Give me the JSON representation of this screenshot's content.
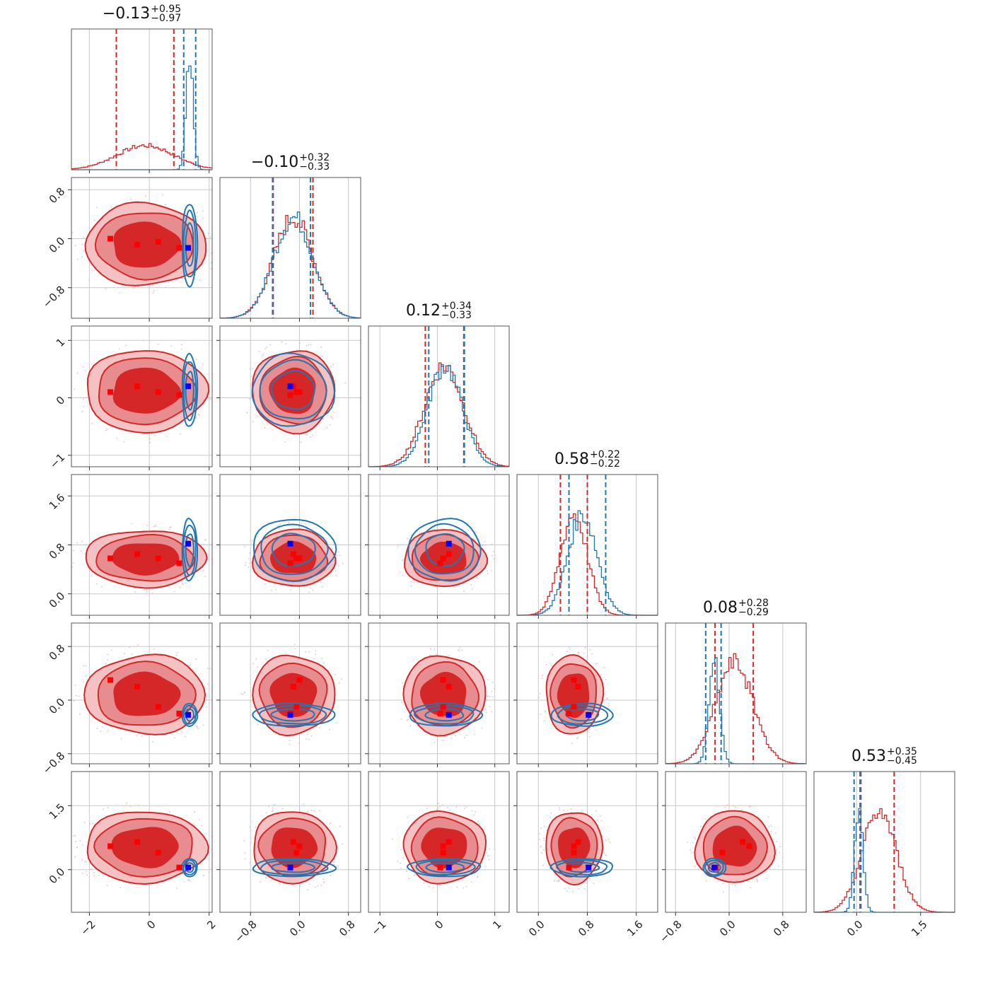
{
  "chart_data": {
    "type": "corner",
    "title": "",
    "parameters": 6,
    "panel_titles": [
      {
        "value": "−0.13",
        "plus": "+0.95",
        "minus": "−0.97"
      },
      {
        "value": "−0.10",
        "plus": "+0.32",
        "minus": "−0.33"
      },
      {
        "value": "0.12",
        "plus": "+0.34",
        "minus": "−0.33"
      },
      {
        "value": "0.58",
        "plus": "+0.22",
        "minus": "−0.22"
      },
      {
        "value": "0.08",
        "plus": "+0.28",
        "minus": "−0.29"
      },
      {
        "value": "0.53",
        "plus": "+0.35",
        "minus": "−0.45"
      }
    ],
    "ranges": [
      [
        -2.6,
        2.1
      ],
      [
        -1.3,
        1.0
      ],
      [
        -1.2,
        1.25
      ],
      [
        -0.35,
        1.95
      ],
      [
        -0.95,
        1.15
      ],
      [
        -1.0,
        2.3
      ]
    ],
    "x_ticks": [
      {
        "values": [
          -2,
          0,
          2
        ],
        "labels": [
          "−2",
          "0",
          "2"
        ]
      },
      {
        "values": [
          -0.8,
          0.0,
          0.8
        ],
        "labels": [
          "−0.8",
          "0.0",
          "0.8"
        ]
      },
      {
        "values": [
          -1,
          0,
          1
        ],
        "labels": [
          "−1",
          "0",
          "1"
        ]
      },
      {
        "values": [
          0.0,
          0.8,
          1.6
        ],
        "labels": [
          "0.0",
          "0.8",
          "1.6"
        ]
      },
      {
        "values": [
          -0.8,
          0.0,
          0.8
        ],
        "labels": [
          "−0.8",
          "0.0",
          "0.8"
        ]
      },
      {
        "values": [
          0.0,
          1.5
        ],
        "labels": [
          "0.0",
          "1.5"
        ]
      }
    ],
    "y_ticks": [
      null,
      {
        "values": [
          0.8,
          0.0,
          -0.8
        ],
        "labels": [
          "0.8",
          "0.0",
          "−0.8"
        ]
      },
      {
        "values": [
          1,
          0,
          -1
        ],
        "labels": [
          "1",
          "0",
          "−1"
        ]
      },
      {
        "values": [
          1.6,
          0.8,
          0.0
        ],
        "labels": [
          "1.6",
          "0.8",
          "0.0"
        ]
      },
      {
        "values": [
          0.8,
          0.0,
          -0.8
        ],
        "labels": [
          "0.8",
          "0.0",
          "−0.8"
        ]
      },
      {
        "values": [
          1.5,
          0.0
        ],
        "labels": [
          "1.5",
          "0.0"
        ]
      }
    ],
    "series": [
      {
        "color": "#d62728",
        "marker_color": "#ff0000",
        "means": [
          -0.13,
          -0.1,
          0.12,
          0.58,
          0.08,
          0.53
        ],
        "sigmas": [
          0.96,
          0.32,
          0.34,
          0.22,
          0.28,
          0.4
        ],
        "quantiles": [
          [
            -1.1,
            0.82
          ],
          [
            -0.43,
            0.22
          ],
          [
            -0.21,
            0.46
          ],
          [
            0.36,
            0.8
          ],
          [
            -0.21,
            0.36
          ],
          [
            0.08,
            0.88
          ]
        ],
        "markers": [
          [
            -1.3,
            0.0,
            0.1,
            0.58,
            0.3,
            0.55
          ],
          [
            -0.4,
            -0.1,
            0.2,
            0.65,
            0.2,
            0.65
          ],
          [
            0.3,
            -0.05,
            0.1,
            0.58,
            -0.1,
            0.4
          ],
          [
            1.0,
            -0.15,
            0.05,
            0.5,
            -0.2,
            0.05
          ]
        ]
      },
      {
        "color": "#1f77b4",
        "marker_color": "#0000ff",
        "means": [
          1.35,
          -0.1,
          0.13,
          0.72,
          -0.22,
          0.05
        ],
        "sigmas": [
          0.12,
          0.32,
          0.3,
          0.24,
          0.08,
          0.1
        ],
        "quantiles": [
          [
            1.15,
            1.55
          ],
          [
            -0.44,
            0.18
          ],
          [
            -0.15,
            0.47
          ],
          [
            0.5,
            1.1
          ],
          [
            -0.35,
            -0.12
          ],
          [
            -0.06,
            0.1
          ]
        ],
        "markers": [
          [
            1.3,
            -0.15,
            0.2,
            0.82,
            -0.22,
            0.05
          ]
        ]
      }
    ]
  }
}
